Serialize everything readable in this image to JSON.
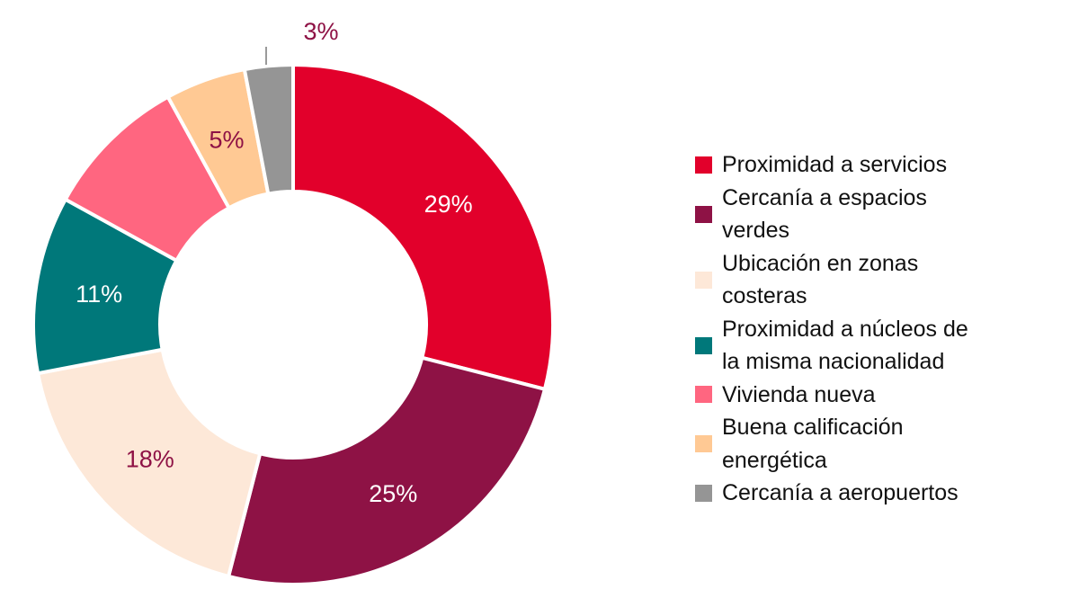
{
  "chart_data": {
    "type": "pie",
    "variant": "donut",
    "title": "",
    "categories": [
      "Proximidad a servicios",
      "Cercanía a espacios verdes",
      "Ubicación en zonas costeras",
      "Proximidad a núcleos de la misma nacionalidad",
      "Vivienda nueva",
      "Buena calificación energética",
      "Cercanía a aeropuertos"
    ],
    "values": [
      29,
      25,
      18,
      11,
      9,
      5,
      3
    ],
    "data_labels": [
      "29%",
      "25%",
      "18%",
      "11%",
      "",
      "5%",
      "3%"
    ],
    "colors": [
      "#e2002b",
      "#8e1245",
      "#fde8d8",
      "#00787a",
      "#ff6680",
      "#ffc994",
      "#959595"
    ],
    "label_colors": [
      "#ffffff",
      "#ffffff",
      "#8e1245",
      "#ffffff",
      "#ffffff",
      "#8e1245",
      "#8e1245"
    ],
    "legend_position": "right",
    "start_angle": "12 o'clock, clockwise"
  },
  "legend": {
    "items": [
      {
        "label_lines": [
          "Proximidad a servicios"
        ],
        "color": "#e2002b"
      },
      {
        "label_lines": [
          "Cercanía a espacios",
          "verdes"
        ],
        "color": "#8e1245"
      },
      {
        "label_lines": [
          "Ubicación en zonas",
          "costeras"
        ],
        "color": "#fde8d8"
      },
      {
        "label_lines": [
          "Proximidad a núcleos de",
          "la misma nacionalidad"
        ],
        "color": "#00787a"
      },
      {
        "label_lines": [
          "Vivienda nueva"
        ],
        "color": "#ff6680"
      },
      {
        "label_lines": [
          "Buena calificación",
          "energética"
        ],
        "color": "#ffc994"
      },
      {
        "label_lines": [
          "Cercanía a aeropuertos"
        ],
        "color": "#959595"
      }
    ]
  }
}
